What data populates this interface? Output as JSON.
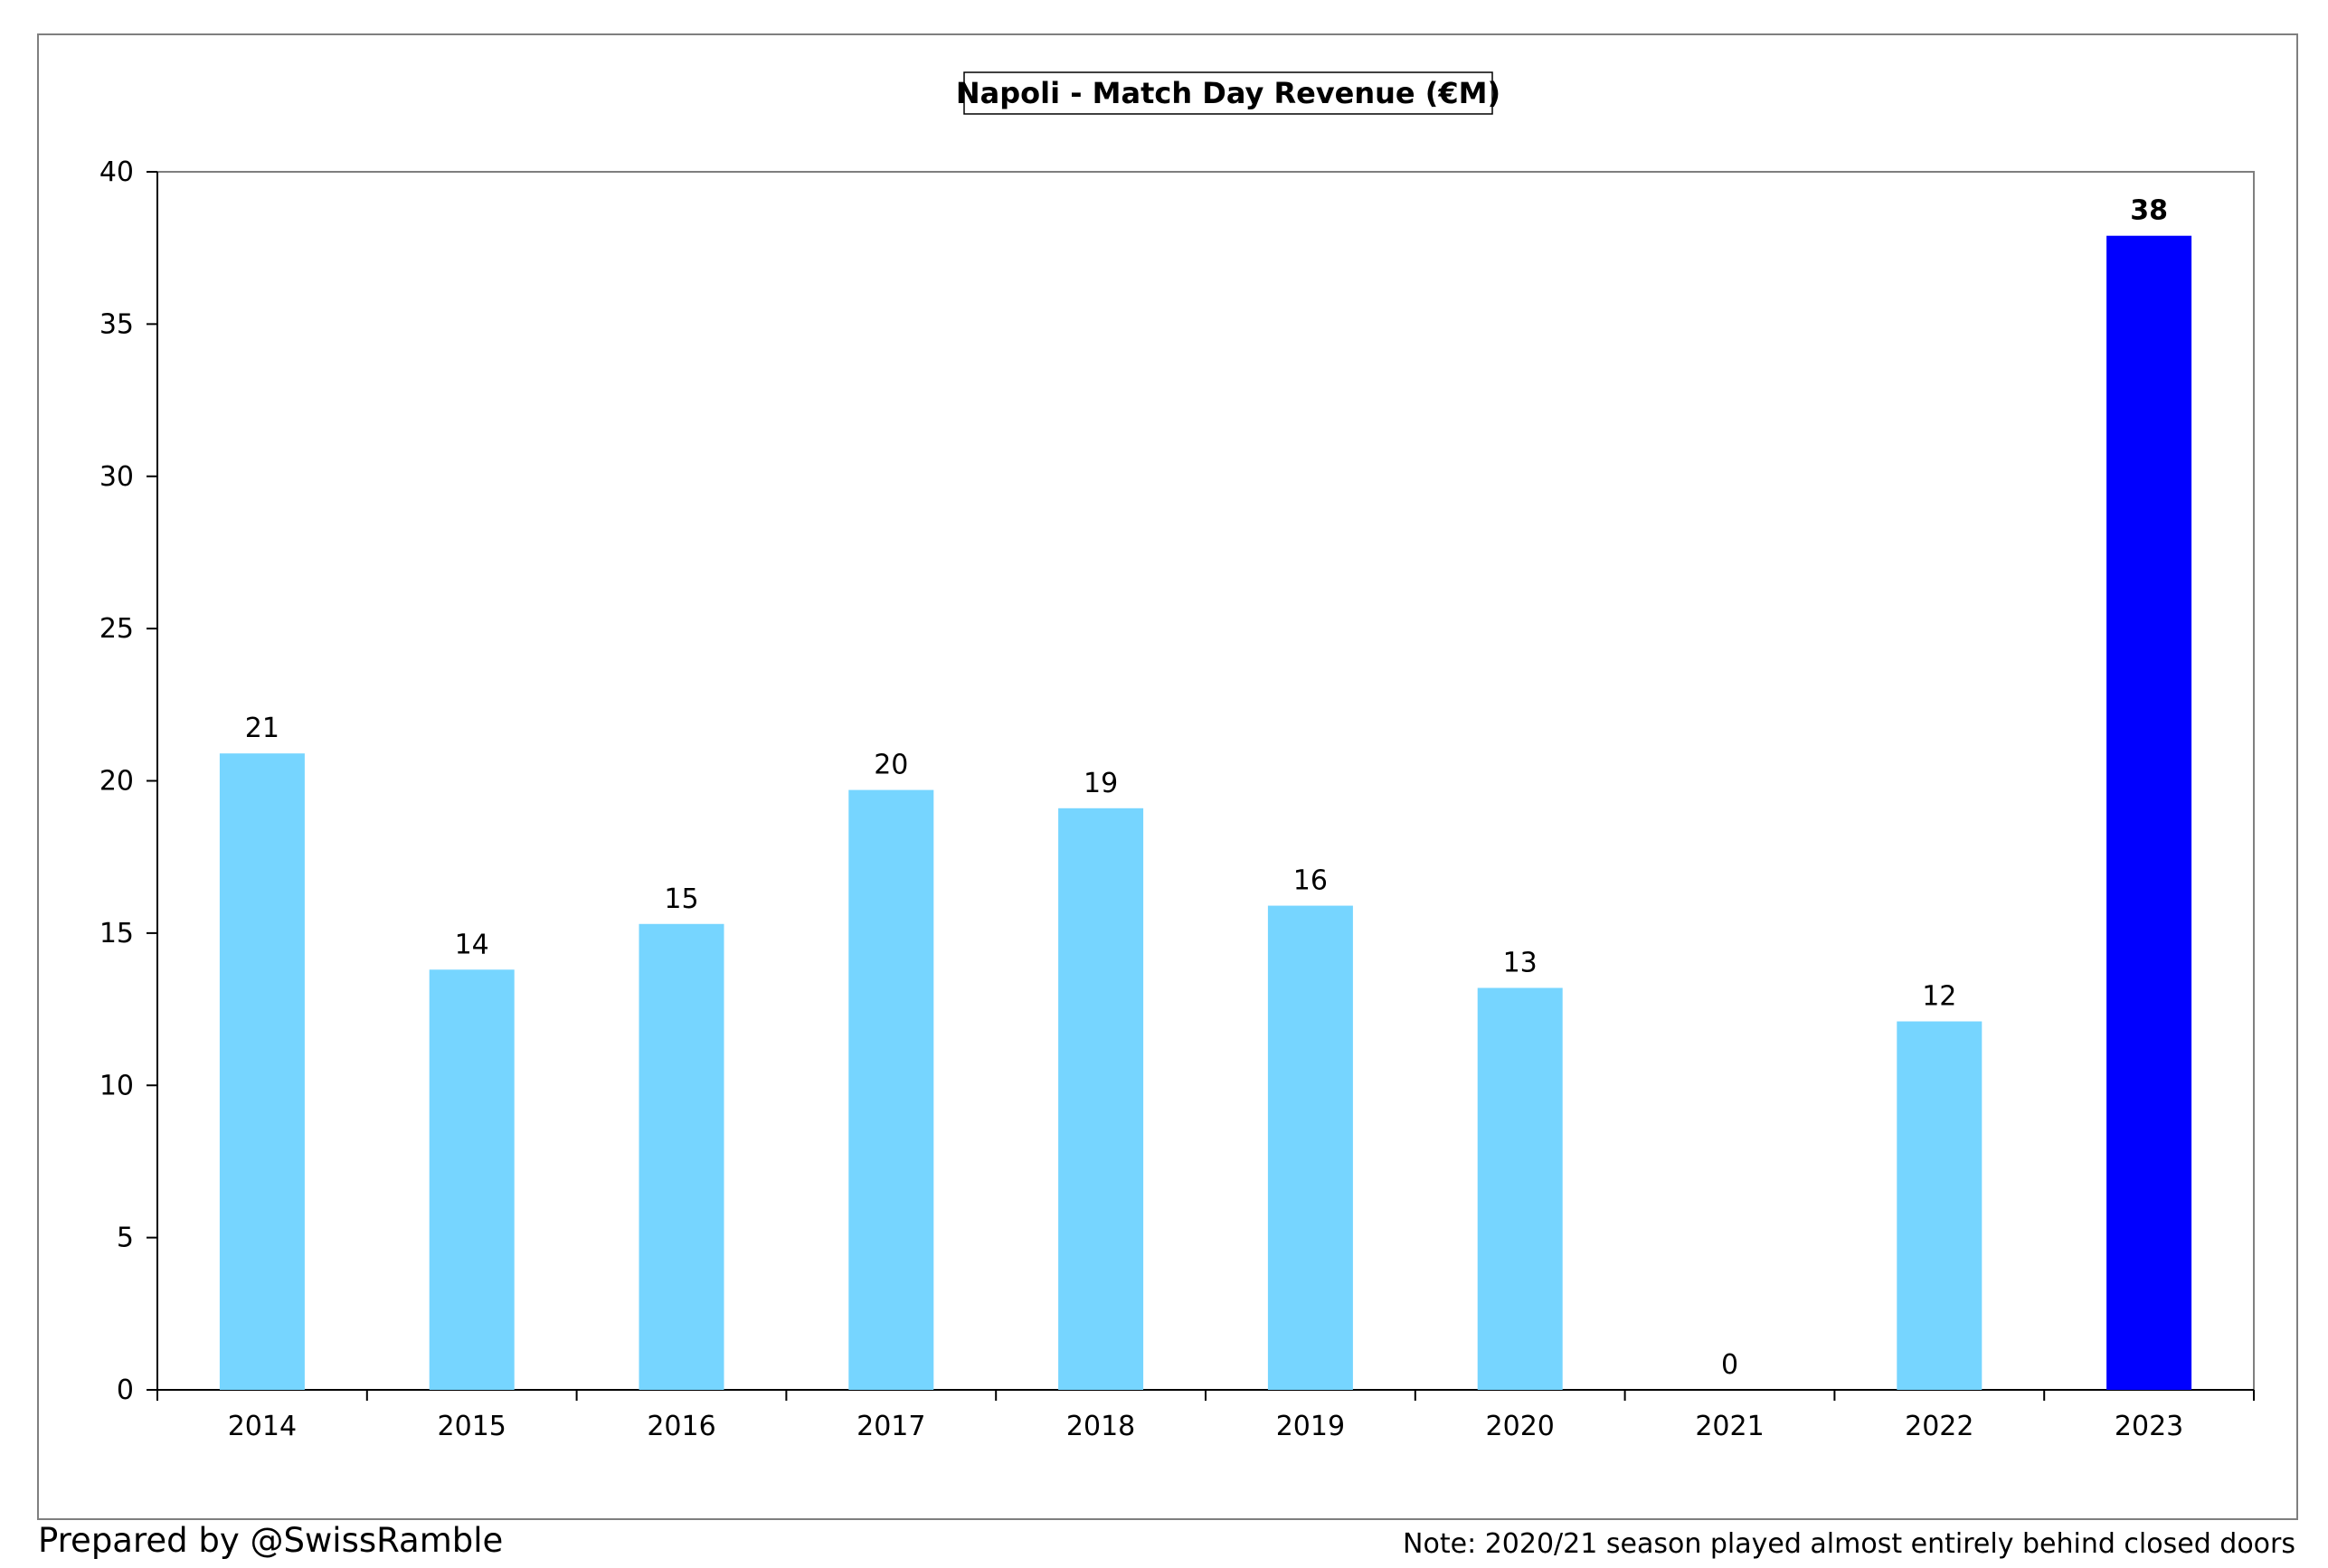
{
  "chart_data": {
    "type": "bar",
    "title": "Napoli - Match Day Revenue (€M)",
    "xlabel": "",
    "ylabel": "",
    "ylim": [
      0,
      40
    ],
    "yticks": [
      0,
      5,
      10,
      15,
      20,
      25,
      30,
      35,
      40
    ],
    "categories": [
      "2014",
      "2015",
      "2016",
      "2017",
      "2018",
      "2019",
      "2020",
      "2021",
      "2022",
      "2023"
    ],
    "values": [
      20.9,
      13.8,
      15.3,
      19.7,
      19.1,
      15.9,
      13.2,
      0,
      12.1,
      37.9
    ],
    "data_labels": [
      "21",
      "14",
      "15",
      "20",
      "19",
      "16",
      "13",
      "0",
      "12",
      "38"
    ],
    "highlight_index": 9,
    "grid": false,
    "legend": "none",
    "colors": {
      "bar": "#76D5FF",
      "highlight": "#0000FF",
      "axis": "#000000",
      "frame": "#7f7f7f"
    }
  },
  "footer": {
    "credit": "Prepared by @SwissRamble",
    "note": "Note: 2020/21 season played almost entirely behind closed doors"
  }
}
